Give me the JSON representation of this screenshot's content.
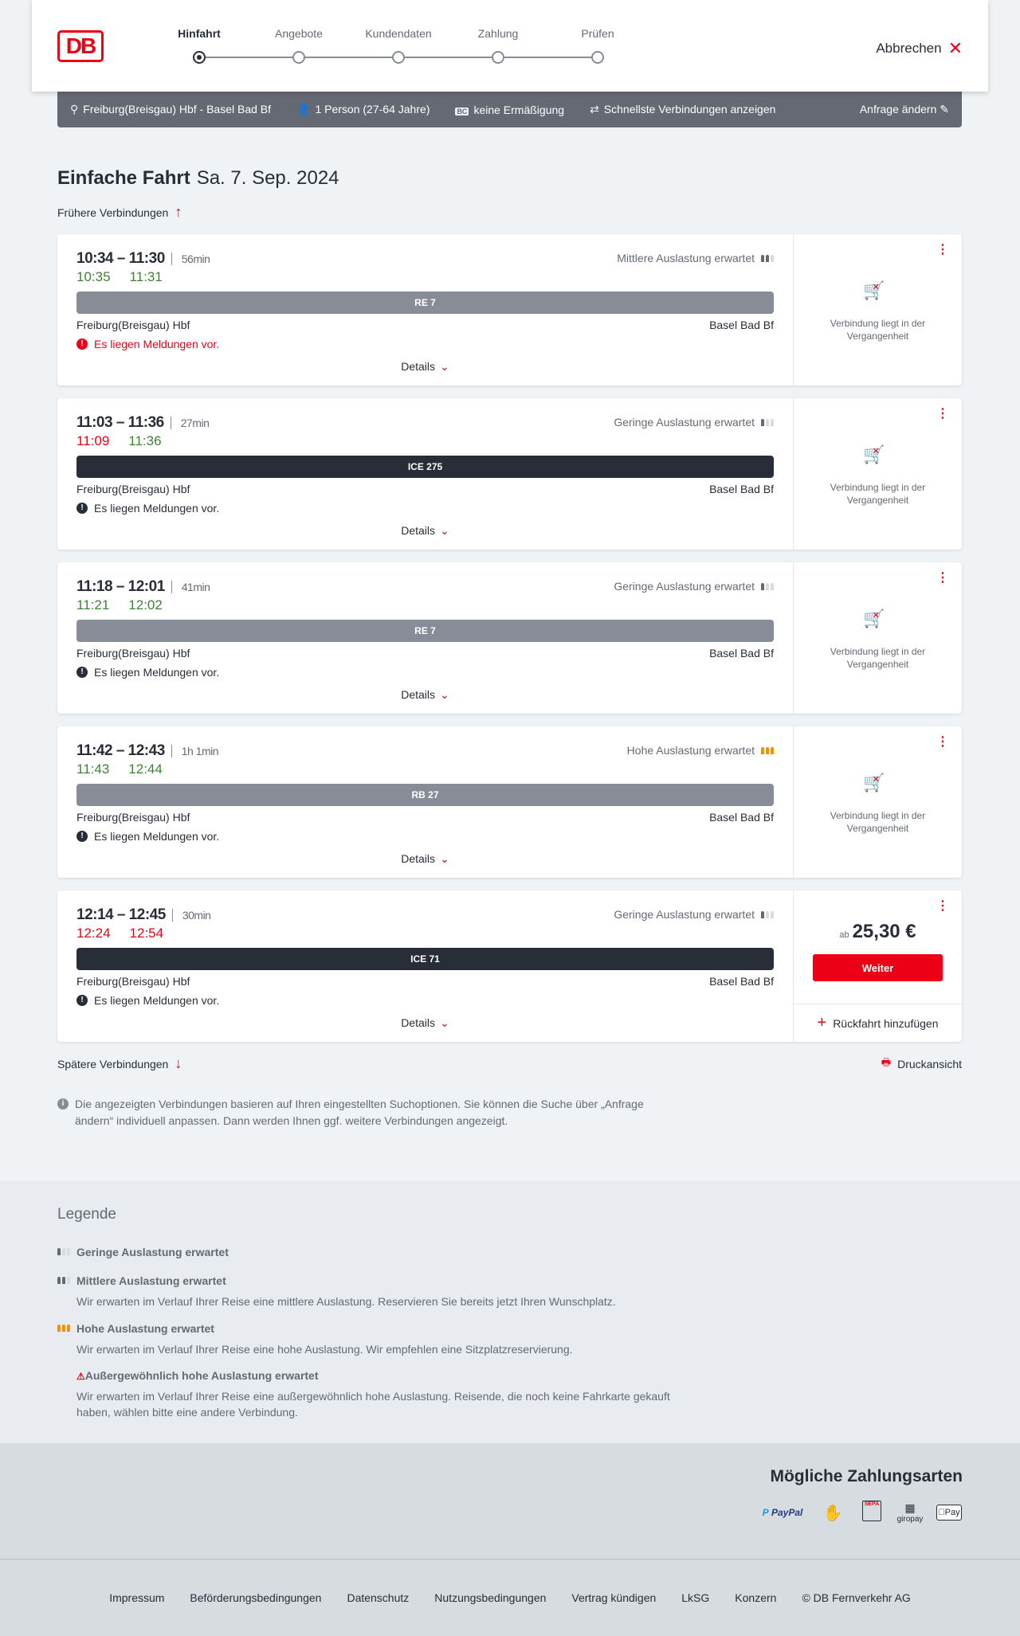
{
  "header": {
    "logo": "DB",
    "steps": [
      "Hinfahrt",
      "Angebote",
      "Kundendaten",
      "Zahlung",
      "Prüfen"
    ],
    "active_step": 0,
    "cancel": "Abbrechen"
  },
  "infobar": {
    "route": "Freiburg(Breisgau) Hbf - Basel Bad Bf",
    "travellers": "1 Person (27-64 Jahre)",
    "discount_badge": "BC",
    "discount": "keine Ermäßigung",
    "fastest": "Schnellste Verbindungen anzeigen",
    "change": "Anfrage ändern"
  },
  "title": {
    "main": "Einfache Fahrt",
    "date": "Sa. 7. Sep. 2024"
  },
  "earlier": "Frühere Verbindungen",
  "later": "Spätere Verbindungen",
  "print": "Druckansicht",
  "colors": {
    "accent": "#ec0016",
    "ontime": "#408335",
    "regional": "#878c96",
    "ice": "#282d37",
    "high_load": "#f39200"
  },
  "connections": [
    {
      "times": "10:34 – 11:30",
      "duration": "56min",
      "rt_dep": "10:35",
      "rt_arr": "11:31",
      "rt_late": false,
      "load": "Mittlere Auslastung erwartet",
      "load_level": 2,
      "train": "RE 7",
      "train_type": "regional",
      "from": "Freiburg(Breisgau) Hbf",
      "to": "Basel Bad Bf",
      "message": "Es liegen Meldungen vor.",
      "message_red": true,
      "details": "Details",
      "past": "Verbindung liegt in der Vergangenheit"
    },
    {
      "times": "11:03 – 11:36",
      "duration": "27min",
      "rt_dep": "11:09",
      "rt_arr": "11:36",
      "rt_late": [
        true,
        false
      ],
      "load": "Geringe Auslastung erwartet",
      "load_level": 1,
      "train": "ICE 275",
      "train_type": "ice",
      "from": "Freiburg(Breisgau) Hbf",
      "to": "Basel Bad Bf",
      "message": "Es liegen Meldungen vor.",
      "message_red": false,
      "details": "Details",
      "past": "Verbindung liegt in der Vergangenheit"
    },
    {
      "times": "11:18 – 12:01",
      "duration": "41min",
      "rt_dep": "11:21",
      "rt_arr": "12:02",
      "rt_late": false,
      "load": "Geringe Auslastung erwartet",
      "load_level": 1,
      "train": "RE 7",
      "train_type": "regional",
      "from": "Freiburg(Breisgau) Hbf",
      "to": "Basel Bad Bf",
      "message": "Es liegen Meldungen vor.",
      "message_red": false,
      "details": "Details",
      "past": "Verbindung liegt in der Vergangenheit"
    },
    {
      "times": "11:42 – 12:43",
      "duration": "1h 1min",
      "rt_dep": "11:43",
      "rt_arr": "12:44",
      "rt_late": false,
      "load": "Hohe Auslastung erwartet",
      "load_level": 3,
      "train": "RB 27",
      "train_type": "regional",
      "from": "Freiburg(Breisgau) Hbf",
      "to": "Basel Bad Bf",
      "message": "Es liegen Meldungen vor.",
      "message_red": false,
      "details": "Details",
      "past": "Verbindung liegt in der Vergangenheit"
    },
    {
      "times": "12:14 – 12:45",
      "duration": "30min",
      "rt_dep": "12:24",
      "rt_arr": "12:54",
      "rt_late": true,
      "load": "Geringe Auslastung erwartet",
      "load_level": 1,
      "train": "ICE 71",
      "train_type": "ice",
      "from": "Freiburg(Breisgau) Hbf",
      "to": "Basel Bad Bf",
      "message": "Es liegen Meldungen vor.",
      "message_red": false,
      "details": "Details",
      "price_prefix": "ab",
      "price": "25,30 €",
      "button": "Weiter",
      "return": "Rückfahrt hinzufügen"
    }
  ],
  "note": "Die angezeigten Verbindungen basieren auf Ihren eingestellten Suchoptionen. Sie können die Suche über „Anfrage ändern“ individuell anpassen. Dann werden Ihnen ggf. weitere Verbindungen angezeigt.",
  "legend": {
    "title": "Legende",
    "items": [
      {
        "title": "Geringe Auslastung erwartet",
        "desc": "",
        "level": 1
      },
      {
        "title": "Mittlere Auslastung erwartet",
        "desc": "Wir erwarten im Verlauf Ihrer Reise eine mittlere Auslastung. Reservieren Sie bereits jetzt Ihren Wunschplatz.",
        "level": 2
      },
      {
        "title": "Hohe Auslastung erwartet",
        "desc": "Wir erwarten im Verlauf Ihrer Reise eine hohe Auslastung. Wir empfehlen eine Sitzplatzreservierung.",
        "level": 3
      },
      {
        "title": "Außergewöhnlich hohe Auslastung erwartet",
        "desc": "Wir erwarten im Verlauf Ihrer Reise eine außergewöhnlich hohe Auslastung. Reisende, die noch keine Fahrkarte gekauft haben, wählen bitte eine andere Verbindung.",
        "level": 4
      }
    ]
  },
  "payment": {
    "title": "Mögliche Zahlungsarten",
    "methods": [
      "PayPal",
      "Kreditkarte",
      "SEPA",
      "giropay",
      "Pay"
    ]
  },
  "footer": [
    "Impressum",
    "Beförderungsbedingungen",
    "Datenschutz",
    "Nutzungsbedingungen",
    "Vertrag kündigen",
    "LkSG",
    "Konzern",
    "© DB Fernverkehr AG"
  ]
}
